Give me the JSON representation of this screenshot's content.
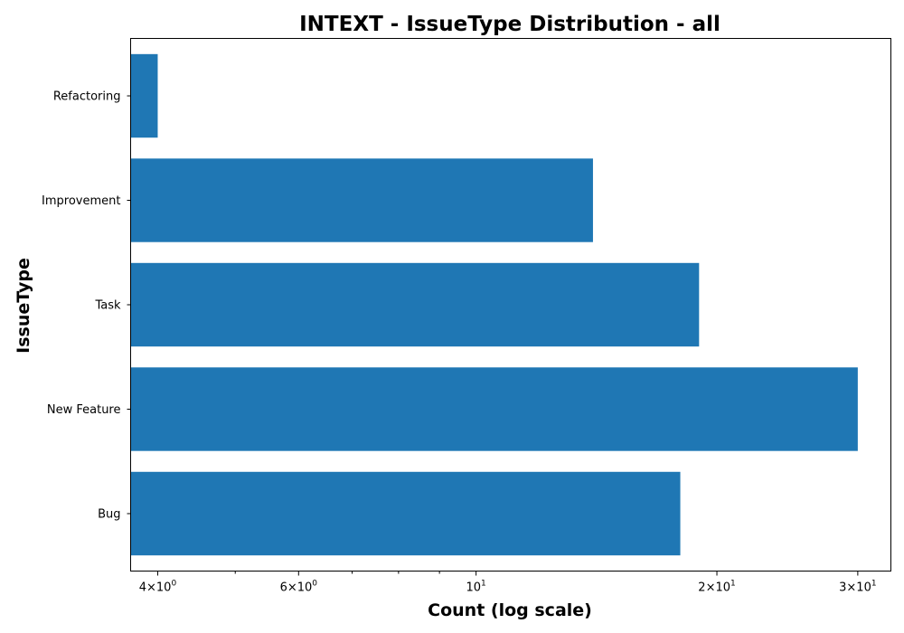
{
  "chart_data": {
    "type": "bar",
    "orientation": "horizontal",
    "title": "INTEXT - IssueType Distribution - all",
    "xlabel": "Count (log scale)",
    "ylabel": "IssueType",
    "x_scale": "log",
    "xlim": [
      3.7,
      33
    ],
    "grid": false,
    "categories": [
      "Bug",
      "New Feature",
      "Task",
      "Improvement",
      "Refactoring"
    ],
    "values": [
      18,
      30,
      19,
      14,
      4
    ],
    "color": "#1f77b4",
    "major_ticks": [
      {
        "value": 4,
        "base": "4×10",
        "exp": "0"
      },
      {
        "value": 6,
        "base": "6×10",
        "exp": "0"
      },
      {
        "value": 10,
        "base": "10",
        "exp": "1"
      },
      {
        "value": 20,
        "base": "2×10",
        "exp": "1"
      },
      {
        "value": 30,
        "base": "3×10",
        "exp": "1"
      }
    ],
    "minor_ticks": [
      5,
      7,
      8,
      9
    ]
  }
}
